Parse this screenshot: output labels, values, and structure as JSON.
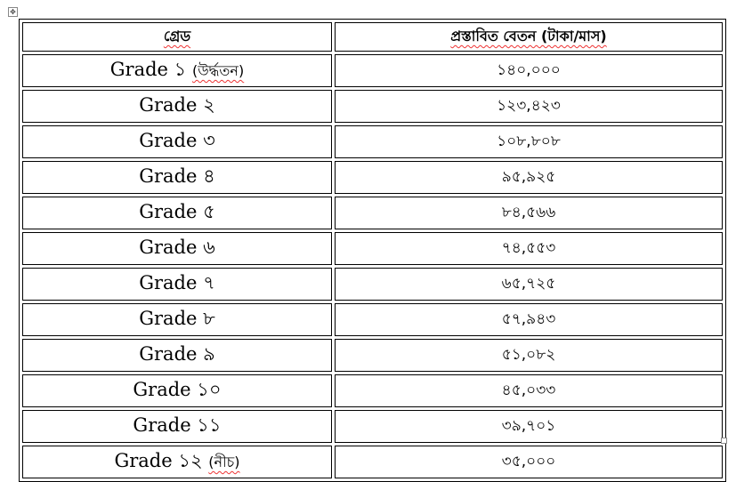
{
  "table": {
    "headers": [
      "গ্রেড",
      "প্রস্তাবিত বেতন (টাকা/মাস)"
    ],
    "rows": [
      {
        "grade": "Grade ১",
        "note": "(উর্দ্ধতন)",
        "salary": "১৪০,০০০"
      },
      {
        "grade": "Grade ২",
        "note": "",
        "salary": "১২৩,৪২৩"
      },
      {
        "grade": "Grade ৩",
        "note": "",
        "salary": "১০৮,৮০৮"
      },
      {
        "grade": "Grade ৪",
        "note": "",
        "salary": "৯৫,৯২৫"
      },
      {
        "grade": "Grade ৫",
        "note": "",
        "salary": "৮৪,৫৬৬"
      },
      {
        "grade": "Grade ৬",
        "note": "",
        "salary": "৭৪,৫৫৩"
      },
      {
        "grade": "Grade ৭",
        "note": "",
        "salary": "৬৫,৭২৫"
      },
      {
        "grade": "Grade ৮",
        "note": "",
        "salary": "৫৭,৯৪৩"
      },
      {
        "grade": "Grade ৯",
        "note": "",
        "salary": "৫১,০৮২"
      },
      {
        "grade": "Grade ১০",
        "note": "",
        "salary": "৪৫,০৩৩"
      },
      {
        "grade": "Grade ১১",
        "note": "",
        "salary": "৩৯,৭০১"
      },
      {
        "grade": "Grade ১২",
        "note": "(নীচ)",
        "salary": "৩৫,০০০"
      }
    ]
  },
  "icons": {
    "table_handle": "move-icon",
    "resize_handle": "resize-icon"
  }
}
